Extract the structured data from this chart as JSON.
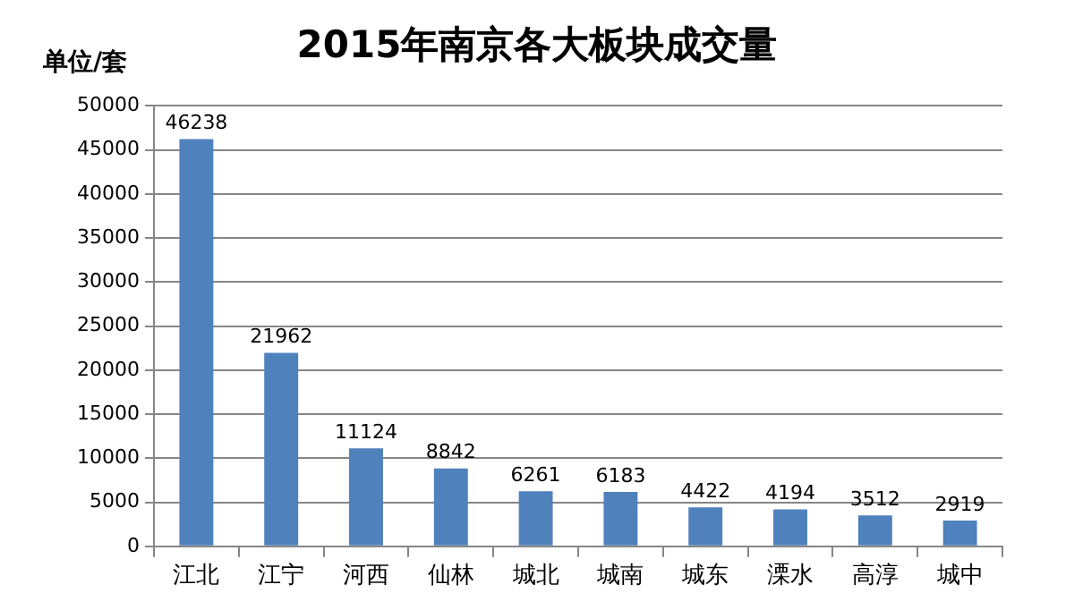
{
  "chart_data": {
    "type": "bar",
    "title": "2015年南京各大板块成交量",
    "ylabel": "单位/套",
    "categories": [
      "江北",
      "江宁",
      "河西",
      "仙林",
      "城北",
      "城南",
      "城东",
      "溧水",
      "高淳",
      "城中"
    ],
    "values": [
      46238,
      21962,
      11124,
      8842,
      6261,
      6183,
      4422,
      4194,
      3512,
      2919
    ],
    "color": "#4f81bd",
    "ylim": [
      0,
      50000
    ],
    "yticks": [
      0,
      5000,
      10000,
      15000,
      20000,
      25000,
      30000,
      35000,
      40000,
      45000,
      50000
    ],
    "grid": "y",
    "data_labels": true
  }
}
